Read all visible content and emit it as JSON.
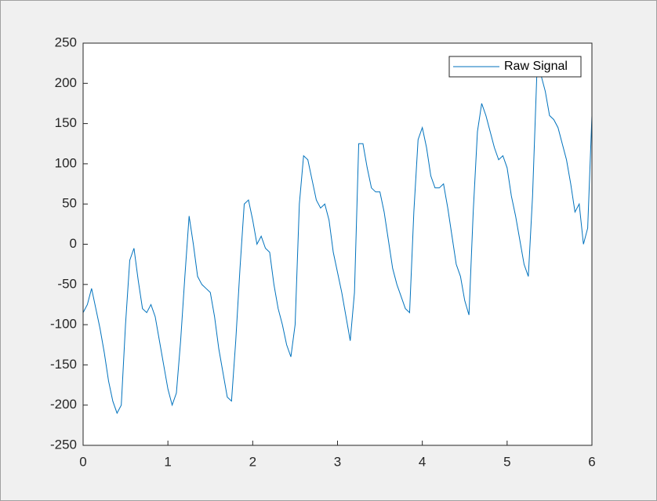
{
  "chart_data": {
    "type": "line",
    "x": [
      0,
      0.05,
      0.1,
      0.15,
      0.2,
      0.25,
      0.3,
      0.35,
      0.4,
      0.45,
      0.5,
      0.55,
      0.6,
      0.65,
      0.7,
      0.75,
      0.8,
      0.85,
      0.9,
      0.95,
      1,
      1.05,
      1.1,
      1.15,
      1.2,
      1.25,
      1.3,
      1.35,
      1.4,
      1.45,
      1.5,
      1.55,
      1.6,
      1.65,
      1.7,
      1.75,
      1.8,
      1.85,
      1.9,
      1.95,
      2,
      2.05,
      2.1,
      2.15,
      2.2,
      2.25,
      2.3,
      2.35,
      2.4,
      2.45,
      2.5,
      2.55,
      2.6,
      2.65,
      2.7,
      2.75,
      2.8,
      2.85,
      2.9,
      2.95,
      3,
      3.05,
      3.1,
      3.15,
      3.2,
      3.25,
      3.3,
      3.35,
      3.4,
      3.45,
      3.5,
      3.55,
      3.6,
      3.65,
      3.7,
      3.75,
      3.8,
      3.85,
      3.9,
      3.95,
      4,
      4.05,
      4.1,
      4.15,
      4.2,
      4.25,
      4.3,
      4.35,
      4.4,
      4.45,
      4.5,
      4.55,
      4.6,
      4.65,
      4.7,
      4.75,
      4.8,
      4.85,
      4.9,
      4.95,
      5,
      5.05,
      5.1,
      5.15,
      5.2,
      5.25,
      5.3,
      5.35,
      5.4,
      5.45,
      5.5,
      5.55,
      5.6,
      5.65,
      5.7,
      5.75,
      5.8,
      5.85,
      5.9,
      5.95,
      6
    ],
    "series": [
      {
        "name": "Raw Signal",
        "color": "#0072bd",
        "values": [
          -85,
          -75,
          -55,
          -80,
          -105,
          -135,
          -170,
          -195,
          -210,
          -200,
          -100,
          -20,
          -5,
          -45,
          -80,
          -85,
          -75,
          -90,
          -120,
          -150,
          -180,
          -200,
          -185,
          -120,
          -40,
          35,
          0,
          -40,
          -50,
          -55,
          -60,
          -90,
          -130,
          -160,
          -190,
          -195,
          -120,
          -30,
          50,
          55,
          30,
          0,
          10,
          -5,
          -10,
          -50,
          -80,
          -100,
          -125,
          -140,
          -100,
          50,
          110,
          105,
          80,
          55,
          45,
          50,
          30,
          -10,
          -35,
          -60,
          -90,
          -120,
          -60,
          125,
          125,
          95,
          70,
          65,
          65,
          40,
          5,
          -30,
          -50,
          -65,
          -80,
          -85,
          40,
          130,
          145,
          120,
          85,
          70,
          70,
          75,
          45,
          10,
          -25,
          -40,
          -70,
          -88,
          40,
          140,
          175,
          160,
          140,
          120,
          105,
          110,
          95,
          60,
          35,
          5,
          -25,
          -40,
          60,
          210,
          210,
          190,
          160,
          155,
          145,
          125,
          105,
          75,
          40,
          50,
          0,
          20,
          160
        ]
      }
    ],
    "xlim": [
      0,
      6
    ],
    "xticks": [
      0,
      1,
      2,
      3,
      4,
      5,
      6
    ],
    "ylim": [
      -250,
      250
    ],
    "yticks": [
      -250,
      -200,
      -150,
      -100,
      -50,
      0,
      50,
      100,
      150,
      200,
      250
    ],
    "legend": "upper right"
  }
}
